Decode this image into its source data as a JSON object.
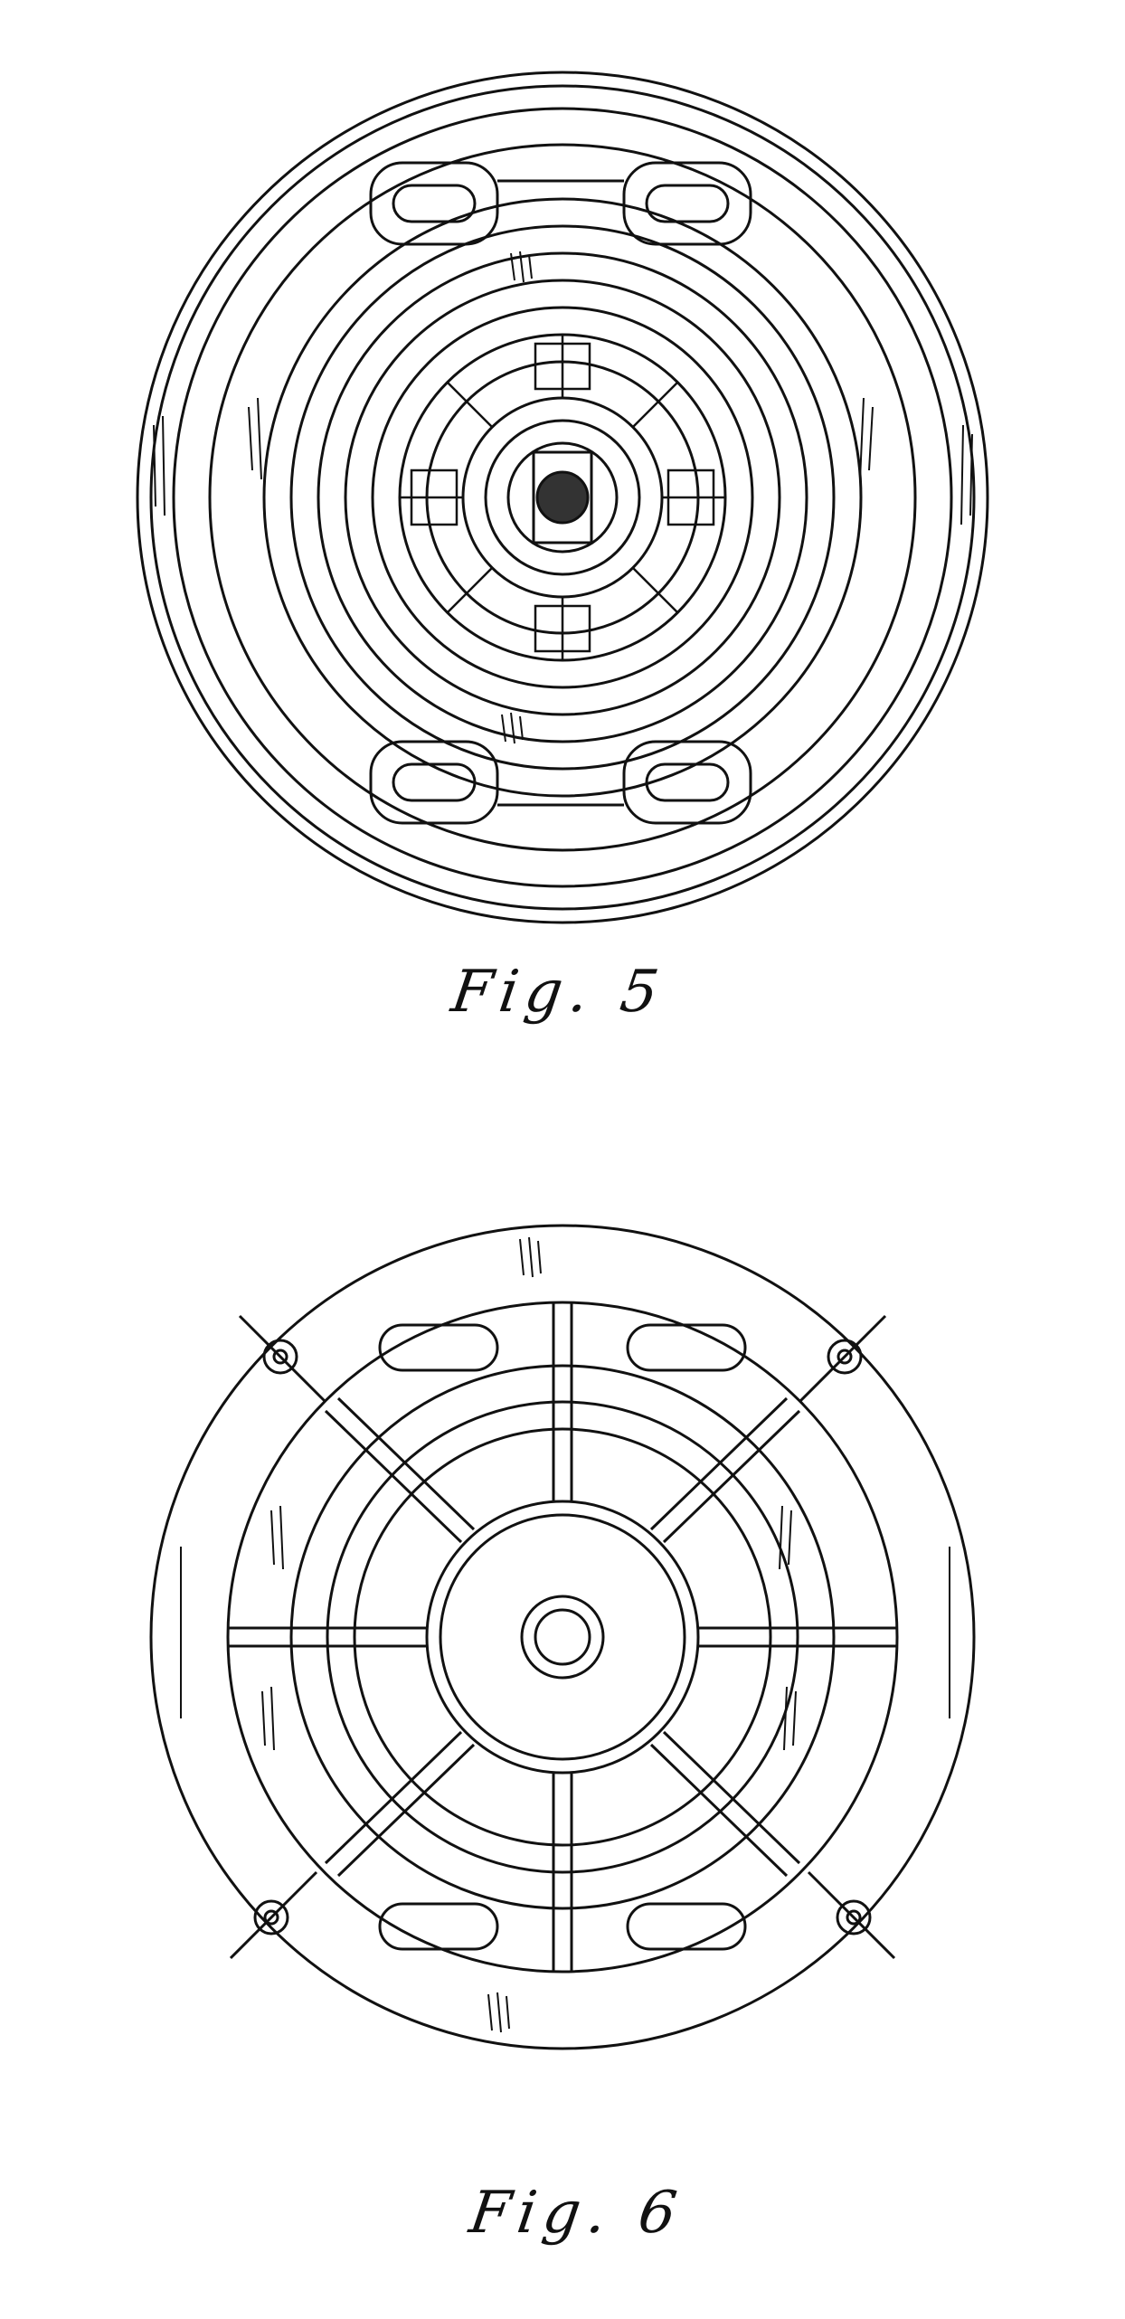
{
  "figures": [
    {
      "id": "fig5",
      "caption": "Fig. 5"
    },
    {
      "id": "fig6",
      "caption": "Fig. 6"
    }
  ]
}
